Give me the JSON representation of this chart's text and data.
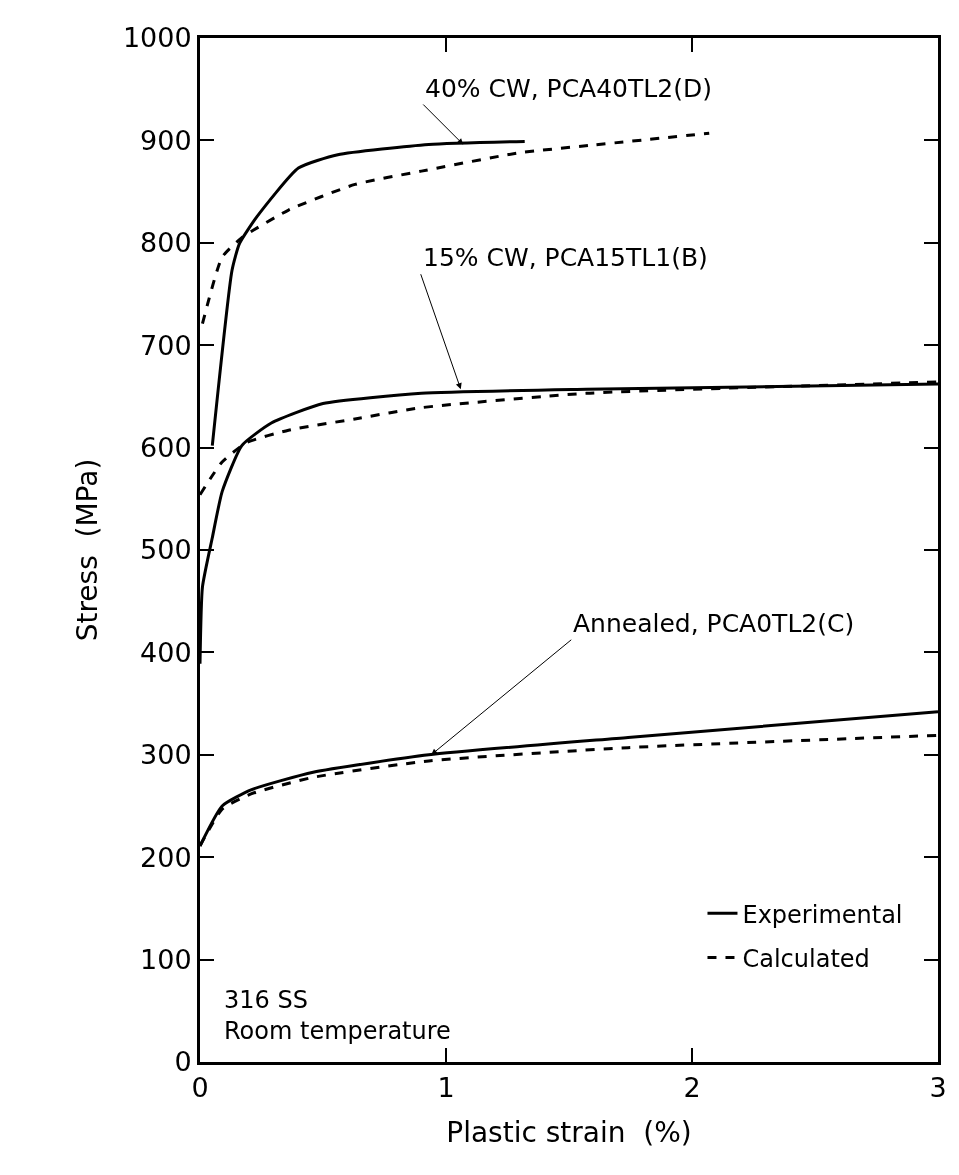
{
  "chart_data": {
    "type": "line",
    "xlabel": "Plastic strain  (%)",
    "ylabel": "Stress  (MPa)",
    "xlim": [
      0,
      3
    ],
    "xticks": [
      0,
      1,
      2,
      3
    ],
    "ylim": [
      0,
      1000
    ],
    "yticks": [
      0,
      100,
      200,
      300,
      400,
      500,
      600,
      700,
      800,
      900,
      1000
    ],
    "legend": "bottom right",
    "marker": "none",
    "series": [
      {
        "name": "Experimental",
        "color": "#000000",
        "line_style": "solid",
        "x": [
          0.05,
          0.13,
          0.16,
          0.23,
          0.4,
          0.56,
          0.93,
          1.32
        ],
        "values": [
          602,
          773,
          799,
          825,
          873,
          886,
          896,
          899
        ]
      },
      {
        "name": "Calculated",
        "color": "#000000",
        "line_style": "dashed",
        "x": [
          0.01,
          0.09,
          0.17,
          0.36,
          0.63,
          0.9,
          1.3,
          1.58,
          2.07
        ],
        "values": [
          721,
          786,
          805,
          832,
          857,
          870,
          888,
          895,
          907
        ]
      },
      {
        "color": "#000000",
        "line_style": "solid",
        "x": [
          0,
          0.01,
          0.05,
          0.09,
          0.17,
          0.29,
          0.5,
          0.9,
          1.57,
          3
        ],
        "values": [
          389,
          464,
          512,
          557,
          602,
          624,
          643,
          653,
          657,
          662
        ]
      },
      {
        "color": "#000000",
        "line_style": "dashed",
        "x": [
          0,
          0.09,
          0.19,
          0.36,
          0.63,
          0.9,
          1.57,
          3
        ],
        "values": [
          554,
          586,
          605,
          617,
          628,
          639,
          653,
          664
        ]
      },
      {
        "color": "#000000",
        "line_style": "solid",
        "x": [
          0,
          0.09,
          0.21,
          0.46,
          0.93,
          1.74,
          3
        ],
        "values": [
          211,
          250,
          266,
          283,
          300,
          317,
          342
        ]
      },
      {
        "color": "#000000",
        "line_style": "dashed",
        "x": [
          0,
          0.09,
          0.21,
          0.46,
          0.93,
          1.74,
          3
        ],
        "values": [
          211,
          247,
          262,
          278,
          294,
          307,
          319
        ]
      }
    ],
    "annotations": [
      {
        "text": "40% CW, PCA40TL2(D)",
        "x": 1.07,
        "y": 896
      },
      {
        "text": "15% CW, PCA15TL1(B)",
        "x": 1.06,
        "y": 657
      },
      {
        "text": "Annealed, PCA0TL2(C)",
        "x": 0.94,
        "y": 300
      },
      "316 SS\nRoom temperature"
    ]
  }
}
